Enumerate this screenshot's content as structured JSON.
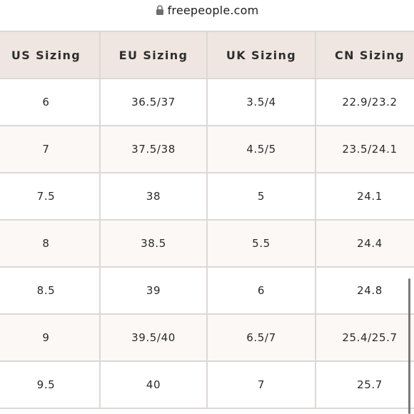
{
  "browser": {
    "url": "freepeople.com",
    "lock_icon": "lock-icon"
  },
  "table": {
    "headers": [
      "US Sizing",
      "EU Sizing",
      "UK Sizing",
      "CN Sizing"
    ],
    "rows": [
      [
        "6",
        "36.5/37",
        "3.5/4",
        "22.9/23.2"
      ],
      [
        "7",
        "37.5/38",
        "4.5/5",
        "23.5/24.1"
      ],
      [
        "7.5",
        "38",
        "5",
        "24.1"
      ],
      [
        "8",
        "38.5",
        "5.5",
        "24.4"
      ],
      [
        "8.5",
        "39",
        "6",
        "24.8"
      ],
      [
        "9",
        "39.5/40",
        "6.5/7",
        "25.4/25.7"
      ],
      [
        "9.5",
        "40",
        "7",
        "25.7"
      ]
    ]
  },
  "colors": {
    "header_bg": "#efe6e1",
    "alt_row_bg": "#fcf8f5",
    "border": "#dcd8d5"
  }
}
